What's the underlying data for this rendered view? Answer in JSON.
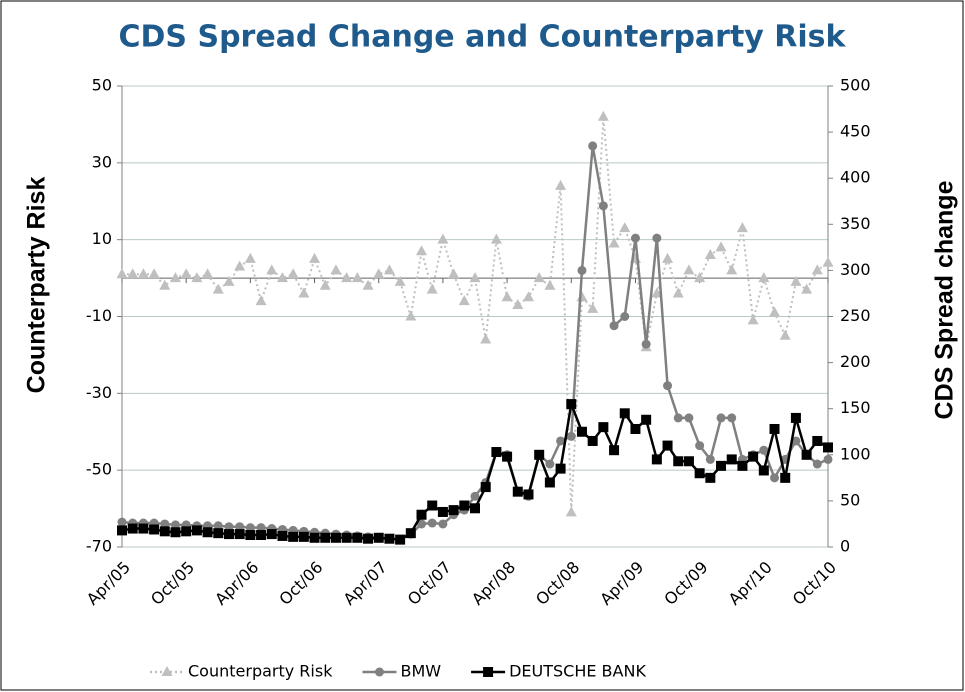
{
  "chart_data": {
    "type": "line",
    "title": "CDS Spread Change and Counterparty Risk",
    "y_label": "Counterparty Risk",
    "y2_label": "CDS Spread change",
    "categories": [
      "Apr/05",
      null,
      null,
      null,
      null,
      null,
      "Oct/05",
      null,
      null,
      null,
      null,
      null,
      "Apr/06",
      null,
      null,
      null,
      null,
      null,
      "Oct/06",
      null,
      null,
      null,
      null,
      null,
      "Apr/07",
      null,
      null,
      null,
      null,
      null,
      "Oct/07",
      null,
      null,
      null,
      null,
      null,
      "Apr/08",
      null,
      null,
      null,
      null,
      null,
      "Oct/08",
      null,
      null,
      null,
      null,
      null,
      "Apr/09",
      null,
      null,
      null,
      null,
      null,
      "Oct/09",
      null,
      null,
      null,
      null,
      null,
      "Apr/10",
      null,
      null,
      null,
      null,
      null,
      "Oct/10"
    ],
    "series": [
      {
        "name": "Counterparty Risk",
        "color": "#bfbfbf",
        "marker": "triangle",
        "dash": true,
        "values": [
          1,
          1,
          1,
          1,
          -2,
          0,
          1,
          0,
          1,
          -3,
          -1,
          3,
          5,
          -6,
          2,
          0,
          1,
          -4,
          5,
          -2,
          2,
          0,
          0,
          -2,
          1,
          2,
          -1,
          -10,
          7,
          -3,
          10,
          1,
          -6,
          0,
          -16,
          10,
          -5,
          -7,
          -5,
          0,
          -2,
          24,
          -61,
          -5,
          -8,
          42,
          9,
          13,
          5,
          -18,
          -4,
          5,
          -4,
          2,
          0,
          6,
          8,
          2,
          13,
          -11,
          0,
          -9,
          -15,
          -1,
          -3,
          2,
          4
        ]
      },
      {
        "name": "BMW",
        "color": "#808080",
        "marker": "circle",
        "axis": "y2",
        "values": [
          27,
          26,
          26,
          26,
          25,
          24,
          24,
          23,
          23,
          23,
          22,
          22,
          21,
          21,
          20,
          19,
          18,
          17,
          16,
          15,
          14,
          13,
          12,
          11,
          10,
          9,
          8,
          14,
          25,
          26,
          25,
          35,
          40,
          55,
          70,
          103,
          100,
          60,
          55,
          100,
          90,
          115,
          120,
          300,
          435,
          370,
          240,
          250,
          335,
          220,
          335,
          175,
          140,
          140,
          110,
          95,
          140,
          140,
          95,
          100,
          105,
          75,
          95,
          115,
          100,
          90,
          95
        ]
      },
      {
        "name": "DEUTSCHE BANK",
        "color": "#000000",
        "marker": "square",
        "axis": "y2",
        "values": [
          18,
          20,
          20,
          19,
          17,
          16,
          17,
          18,
          16,
          15,
          14,
          14,
          13,
          13,
          14,
          12,
          11,
          11,
          10,
          10,
          10,
          10,
          10,
          9,
          10,
          9,
          8,
          15,
          35,
          45,
          38,
          40,
          45,
          42,
          65,
          103,
          98,
          60,
          57,
          100,
          70,
          85,
          155,
          125,
          115,
          130,
          105,
          145,
          128,
          138,
          95,
          110,
          93,
          93,
          80,
          75,
          88,
          95,
          88,
          98,
          83,
          128,
          75,
          140,
          100,
          115,
          108
        ]
      }
    ],
    "ylim": [
      -70,
      50
    ],
    "yticks": [
      -70,
      -50,
      -30,
      -10,
      10,
      30,
      50
    ],
    "y2lim": [
      0,
      500
    ],
    "y2ticks": [
      0,
      50,
      100,
      150,
      200,
      250,
      300,
      350,
      400,
      450,
      500
    ],
    "grid": true,
    "legend": "bottom"
  }
}
